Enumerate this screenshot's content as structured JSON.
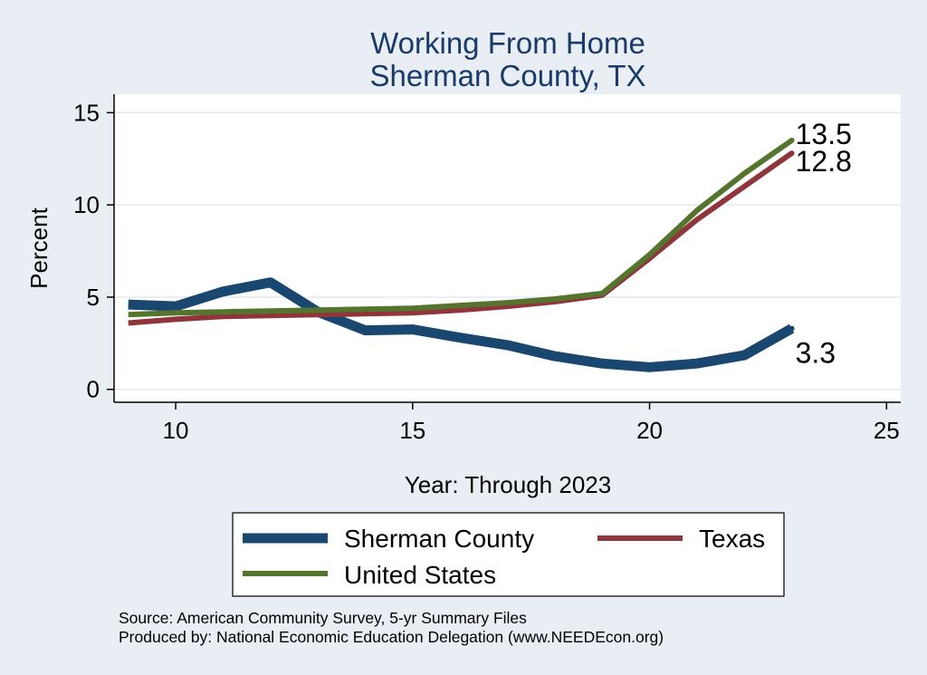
{
  "chart_data": {
    "type": "line",
    "title": "Working From Home",
    "subtitle": "Sherman County, TX",
    "xlabel": "Year: Through 2023",
    "ylabel": "Percent",
    "xlim": [
      8.7,
      25.3
    ],
    "ylim": [
      -0.7,
      16
    ],
    "xticks": [
      10,
      15,
      20,
      25
    ],
    "yticks": [
      0,
      5,
      10,
      15
    ],
    "grid": true,
    "legend_position": "bottom",
    "series": [
      {
        "name": "Sherman County",
        "color": "#1a476f",
        "stroke_width": 11,
        "x": [
          9,
          10,
          11,
          12,
          13,
          14,
          15,
          16,
          17,
          18,
          19,
          20,
          21,
          22,
          23
        ],
        "values": [
          4.6,
          4.5,
          5.3,
          5.8,
          4.2,
          3.2,
          3.25,
          2.8,
          2.4,
          1.8,
          1.4,
          1.2,
          1.4,
          1.85,
          3.3
        ],
        "end_label": "3.3"
      },
      {
        "name": "Texas",
        "color": "#90353b",
        "stroke_width": 6,
        "x": [
          9,
          10,
          11,
          12,
          13,
          14,
          15,
          16,
          17,
          18,
          19,
          20,
          21,
          22,
          23
        ],
        "values": [
          3.6,
          3.8,
          3.95,
          4.0,
          4.05,
          4.1,
          4.15,
          4.3,
          4.5,
          4.75,
          5.1,
          7.1,
          9.2,
          11.0,
          12.8
        ],
        "end_label": "12.8"
      },
      {
        "name": "United States",
        "color": "#55752f",
        "stroke_width": 6,
        "x": [
          9,
          10,
          11,
          12,
          13,
          14,
          15,
          16,
          17,
          18,
          19,
          20,
          21,
          22,
          23
        ],
        "values": [
          4.05,
          4.15,
          4.2,
          4.25,
          4.3,
          4.35,
          4.4,
          4.55,
          4.7,
          4.9,
          5.2,
          7.3,
          9.7,
          11.7,
          13.5
        ],
        "end_label": "13.5"
      }
    ]
  },
  "source_line1": "Source: American Community Survey, 5-yr Summary Files",
  "source_line2": "Produced by: National Economic Education Delegation (www.NEEDEcon.org)"
}
